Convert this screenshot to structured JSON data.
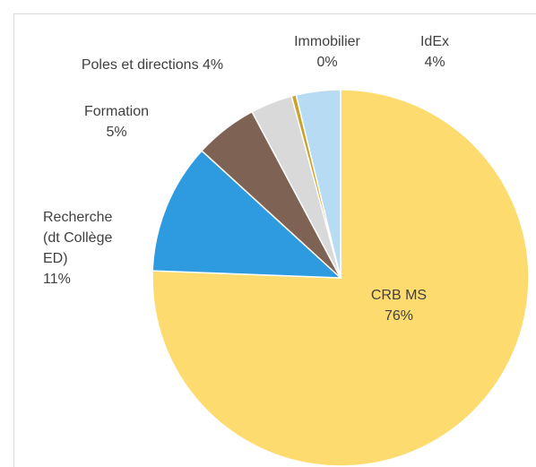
{
  "chart_data": {
    "type": "pie",
    "categories": [
      "CRB MS",
      "Recherche (dt Collège ED)",
      "Formation",
      "Poles et directions",
      "Immobilier",
      "IdEx"
    ],
    "values": [
      75.6,
      11.2,
      5.4,
      3.6,
      0.4,
      3.8
    ],
    "value_labels": [
      "76%",
      "11%",
      "5%",
      "4%",
      "0%",
      "4%"
    ],
    "colors": [
      "#fddb6e",
      "#2e9be1",
      "#7e6354",
      "#d9d9d9",
      "#c9a227",
      "#b6dbf3"
    ]
  }
}
